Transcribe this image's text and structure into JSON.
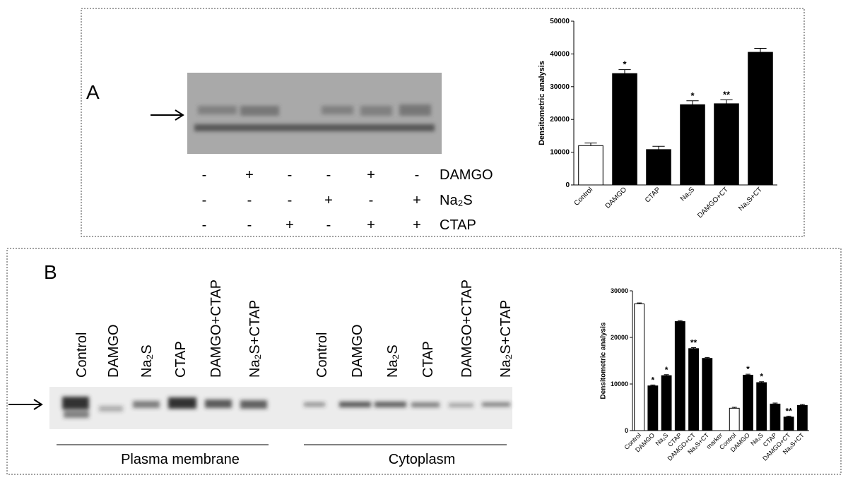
{
  "panels": [
    {
      "label": "A",
      "rows": [
        {
          "name": "DAMGO",
          "signs": [
            "-",
            "+",
            "-",
            "-",
            "+",
            "-"
          ]
        },
        {
          "name": "Na₂S",
          "signs": [
            "-",
            "-",
            "-",
            "+",
            "-",
            "+"
          ]
        },
        {
          "name": "CTAP",
          "signs": [
            "-",
            "-",
            "+",
            "-",
            "+",
            "+"
          ]
        }
      ]
    },
    {
      "label": "B",
      "lanes": [
        "Control",
        "DAMGO",
        "Na₂S",
        "CTAP",
        "DAMGO+CTAP",
        "Na₂S+CTAP",
        "Control",
        "DAMGO",
        "Na₂S",
        "CTAP",
        "DAMGO+CTAP",
        "Na₂S+CTAP"
      ],
      "groups": [
        "Plasma membrane",
        "Cytoplasm"
      ]
    }
  ],
  "chart_data": [
    {
      "type": "bar",
      "y_label": "Densitometric analysis",
      "categories": [
        "Control",
        "DAMGO",
        "CTAP",
        "Na₂S",
        "DAMGO+CT",
        "Na₂S+CT"
      ],
      "values": [
        12000,
        34000,
        10800,
        24500,
        24800,
        40500
      ],
      "errors": [
        800,
        1200,
        1000,
        1200,
        1200,
        1200
      ],
      "annotations": [
        null,
        "*",
        null,
        "*",
        "**",
        null
      ],
      "colors": [
        "#ffffff",
        "#000000",
        "#000000",
        "#000000",
        "#000000",
        "#000000"
      ],
      "ylim": [
        0,
        50000
      ],
      "yticks": [
        0,
        10000,
        20000,
        30000,
        40000,
        50000
      ]
    },
    {
      "type": "bar",
      "y_label": "Densitometric analysis",
      "categories": [
        "Control",
        "DAMGO",
        "Na₂S",
        "CTAP",
        "DAMGO+CT",
        "Na₂S+CT",
        "marker",
        "Control",
        "DAMGO",
        "Na₂S",
        "CTAP",
        "DAMGO+CT",
        "Na₂S+CT"
      ],
      "values": [
        27200,
        9600,
        11800,
        23400,
        17600,
        15500,
        0,
        4800,
        11900,
        10300,
        5700,
        2900,
        5400
      ],
      "errors": [
        200,
        200,
        200,
        200,
        200,
        200,
        null,
        200,
        200,
        200,
        200,
        200,
        200
      ],
      "annotations": [
        null,
        "*",
        "*",
        null,
        "**",
        null,
        null,
        null,
        "*",
        "*",
        null,
        "**",
        null
      ],
      "colors": [
        "#ffffff",
        "#000000",
        "#000000",
        "#000000",
        "#000000",
        "#000000",
        "#000000",
        "#ffffff",
        "#000000",
        "#000000",
        "#000000",
        "#000000",
        "#000000"
      ],
      "ylim": [
        0,
        30000
      ],
      "yticks": [
        0,
        10000,
        20000,
        30000
      ]
    }
  ]
}
